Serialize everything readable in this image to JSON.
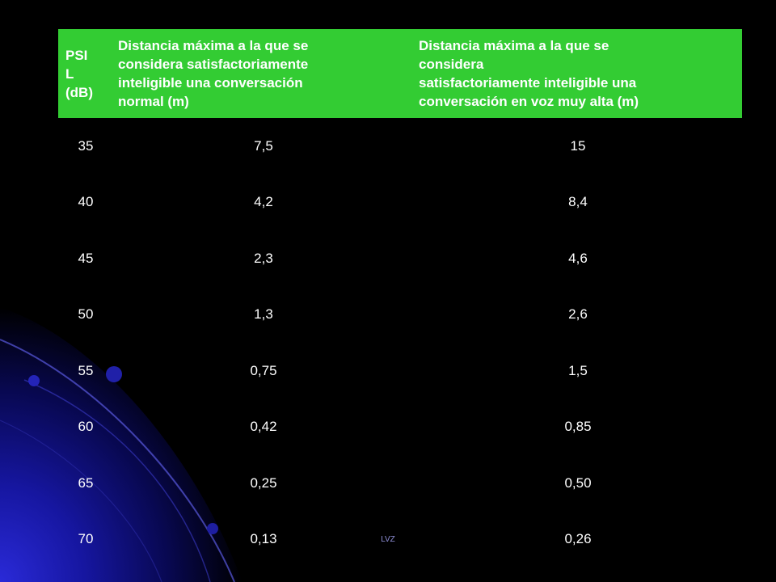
{
  "table": {
    "headers": [
      "PSI\nL\n(dB)",
      "Distancia máxima a la que se\nconsidera satisfactoriamente\ninteligible una conversación\n normal (m)",
      "Distancia máxima a la que se\nconsidera\n satisfactoriamente inteligible una\nconversación en voz muy alta (m)"
    ],
    "rows": [
      [
        "35",
        "7,5",
        "15"
      ],
      [
        "40",
        "4,2",
        "8,4"
      ],
      [
        "45",
        "2,3",
        "4,6"
      ],
      [
        "50",
        "1,3",
        "2,6"
      ],
      [
        "55",
        "0,75",
        "1,5"
      ],
      [
        "60",
        "0,42",
        "0,85"
      ],
      [
        "65",
        "0,25",
        "0,50"
      ],
      [
        "70",
        "0,13",
        "0,26"
      ]
    ]
  },
  "footer": "LVZ",
  "colors": {
    "background": "#000000",
    "header_fill": "#33cc33",
    "text": "#ffffff",
    "accent_blue": "#1a1aa8"
  }
}
